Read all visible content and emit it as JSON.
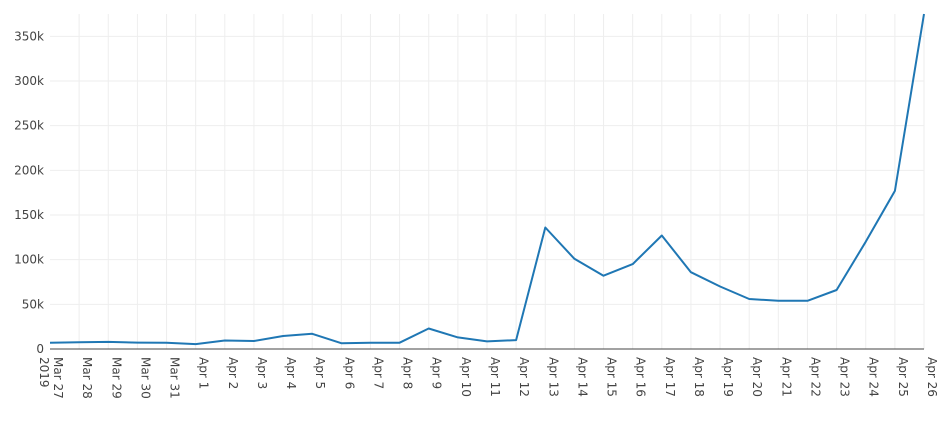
{
  "chart_data": {
    "type": "line",
    "title": "",
    "xlabel": "",
    "ylabel": "",
    "ylim": [
      0,
      375000
    ],
    "grid": true,
    "y_ticks": [
      {
        "value": 0,
        "label": "0"
      },
      {
        "value": 50000,
        "label": "50k"
      },
      {
        "value": 100000,
        "label": "100k"
      },
      {
        "value": 150000,
        "label": "150k"
      },
      {
        "value": 200000,
        "label": "200k"
      },
      {
        "value": 250000,
        "label": "250k"
      },
      {
        "value": 300000,
        "label": "300k"
      },
      {
        "value": 350000,
        "label": "350k"
      }
    ],
    "x": [
      "Mar 27 2019",
      "Mar 28",
      "Mar 29",
      "Mar 30",
      "Mar 31",
      "Apr 1",
      "Apr 2",
      "Apr 3",
      "Apr 4",
      "Apr 5",
      "Apr 6",
      "Apr 7",
      "Apr 8",
      "Apr 9",
      "Apr 10",
      "Apr 11",
      "Apr 12",
      "Apr 13",
      "Apr 14",
      "Apr 15",
      "Apr 16",
      "Apr 17",
      "Apr 18",
      "Apr 19",
      "Apr 20",
      "Apr 21",
      "Apr 22",
      "Apr 23",
      "Apr 24",
      "Apr 25",
      "Apr 26"
    ],
    "x_tick_labels": [
      {
        "lines": [
          "Mar 27",
          "2019"
        ]
      },
      {
        "lines": [
          "Mar 28"
        ]
      },
      {
        "lines": [
          "Mar 29"
        ]
      },
      {
        "lines": [
          "Mar 30"
        ]
      },
      {
        "lines": [
          "Mar 31"
        ]
      },
      {
        "lines": [
          "Apr 1"
        ]
      },
      {
        "lines": [
          "Apr 2"
        ]
      },
      {
        "lines": [
          "Apr 3"
        ]
      },
      {
        "lines": [
          "Apr 4"
        ]
      },
      {
        "lines": [
          "Apr 5"
        ]
      },
      {
        "lines": [
          "Apr 6"
        ]
      },
      {
        "lines": [
          "Apr 7"
        ]
      },
      {
        "lines": [
          "Apr 8"
        ]
      },
      {
        "lines": [
          "Apr 9"
        ]
      },
      {
        "lines": [
          "Apr 10"
        ]
      },
      {
        "lines": [
          "Apr 11"
        ]
      },
      {
        "lines": [
          "Apr 12"
        ]
      },
      {
        "lines": [
          "Apr 13"
        ]
      },
      {
        "lines": [
          "Apr 14"
        ]
      },
      {
        "lines": [
          "Apr 15"
        ]
      },
      {
        "lines": [
          "Apr 16"
        ]
      },
      {
        "lines": [
          "Apr 17"
        ]
      },
      {
        "lines": [
          "Apr 18"
        ]
      },
      {
        "lines": [
          "Apr 19"
        ]
      },
      {
        "lines": [
          "Apr 20"
        ]
      },
      {
        "lines": [
          "Apr 21"
        ]
      },
      {
        "lines": [
          "Apr 22"
        ]
      },
      {
        "lines": [
          "Apr 23"
        ]
      },
      {
        "lines": [
          "Apr 24"
        ]
      },
      {
        "lines": [
          "Apr 25"
        ]
      },
      {
        "lines": [
          "Apr 26"
        ]
      }
    ],
    "series": [
      {
        "color": "#1f77b4",
        "values": [
          7000,
          7500,
          8000,
          7200,
          7000,
          5500,
          9500,
          9000,
          14500,
          17000,
          6500,
          7000,
          7000,
          23000,
          13000,
          8500,
          10000,
          136000,
          101000,
          82000,
          95000,
          127000,
          86000,
          70000,
          56000,
          54000,
          54000,
          66000,
          120000,
          177000,
          375000
        ]
      }
    ],
    "colors": {
      "line": "#1f77b4",
      "grid": "#eeeeee",
      "axis": "#444444"
    }
  }
}
